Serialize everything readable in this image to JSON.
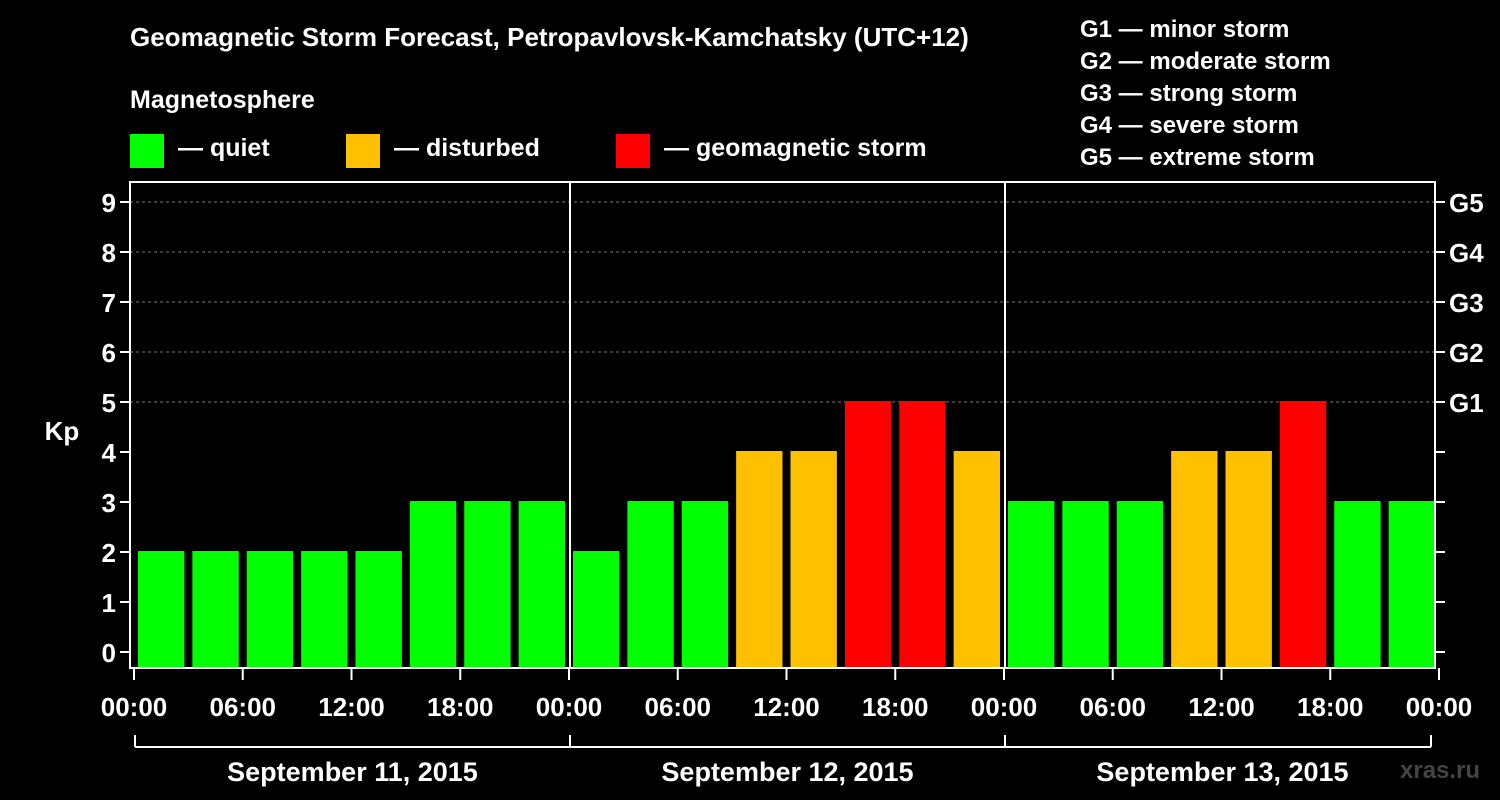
{
  "title": "Geomagnetic Storm Forecast, Petropavlovsk-Kamchatsky (UTC+12)",
  "legend": {
    "heading": "Magnetosphere",
    "items": [
      {
        "label": "— quiet",
        "color": "#00ff00"
      },
      {
        "label": "— disturbed",
        "color": "#ffc000"
      },
      {
        "label": "— geomagnetic storm",
        "color": "#ff0000"
      }
    ]
  },
  "storm_scale": [
    "G1 — minor storm",
    "G2 — moderate storm",
    "G3 — strong storm",
    "G4 — severe storm",
    "G5 — extreme storm"
  ],
  "watermark": "xras.ru",
  "colors": {
    "quiet": "#00ff00",
    "disturbed": "#ffc000",
    "storm": "#ff0000"
  },
  "chart_data": {
    "type": "bar",
    "ylabel": "Kp",
    "ylim": [
      0,
      9
    ],
    "y_ticks": [
      0,
      1,
      2,
      3,
      4,
      5,
      6,
      7,
      8,
      9
    ],
    "right_axis_labels": [
      {
        "kp": 5,
        "label": "G1"
      },
      {
        "kp": 6,
        "label": "G2"
      },
      {
        "kp": 7,
        "label": "G3"
      },
      {
        "kp": 8,
        "label": "G4"
      },
      {
        "kp": 9,
        "label": "G5"
      }
    ],
    "grid": "horizontal dashed",
    "x_tick_labels": [
      "00:00",
      "06:00",
      "12:00",
      "18:00",
      "00:00",
      "06:00",
      "12:00",
      "18:00",
      "00:00",
      "06:00",
      "12:00",
      "18:00",
      "00:00"
    ],
    "days": [
      "September 11, 2015",
      "September 12, 2015",
      "September 13, 2015"
    ],
    "interval_hours": 3,
    "values": [
      2,
      2,
      2,
      2,
      2,
      3,
      3,
      3,
      2,
      3,
      3,
      4,
      4,
      5,
      5,
      4,
      3,
      3,
      3,
      4,
      4,
      5,
      3,
      3
    ],
    "categories": [
      "quiet",
      "quiet",
      "quiet",
      "quiet",
      "quiet",
      "quiet",
      "quiet",
      "quiet",
      "quiet",
      "quiet",
      "quiet",
      "disturbed",
      "disturbed",
      "storm",
      "storm",
      "disturbed",
      "quiet",
      "quiet",
      "quiet",
      "disturbed",
      "disturbed",
      "storm",
      "quiet",
      "quiet"
    ]
  }
}
